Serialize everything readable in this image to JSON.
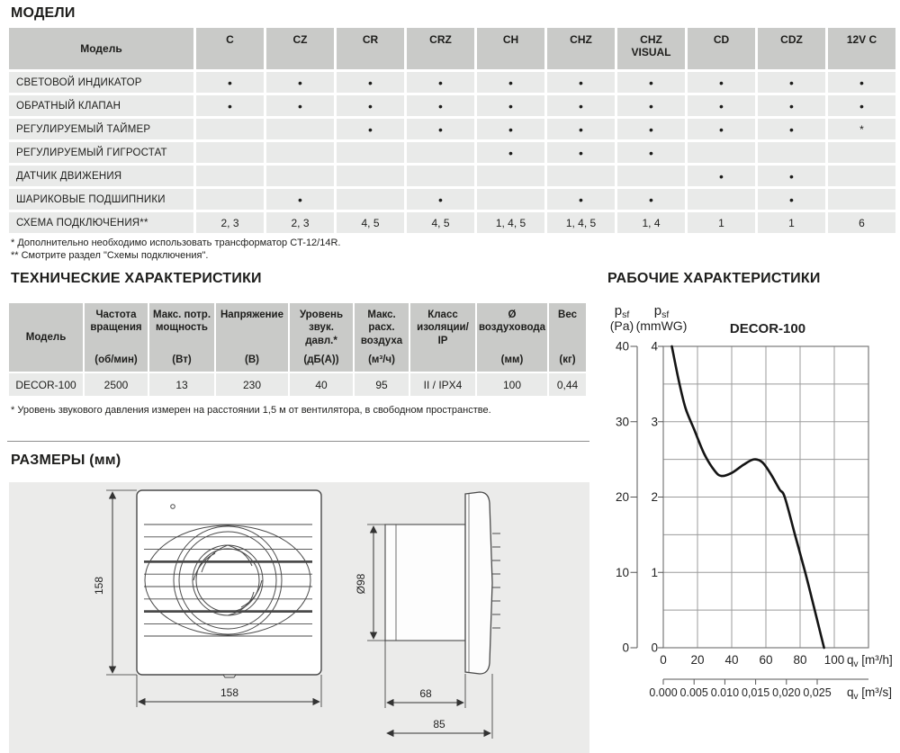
{
  "colors": {
    "header_gray": "#c9cac8",
    "cell_gray": "#e9eae9",
    "panel_gray": "#ebebea",
    "text": "#1d1d1b",
    "grid": "#9b9b9b",
    "curve": "#141414"
  },
  "models": {
    "title": "МОДЕЛИ",
    "corner": "Модель",
    "columns": [
      "C",
      "CZ",
      "CR",
      "CRZ",
      "CH",
      "CHZ",
      "CHZ VISUAL",
      "CD",
      "CDZ",
      "12V C"
    ],
    "rows": [
      {
        "label": "СВЕТОВОЙ ИНДИКАТОР",
        "cells": [
          "•",
          "•",
          "•",
          "•",
          "•",
          "•",
          "•",
          "•",
          "•",
          "•"
        ]
      },
      {
        "label": "ОБРАТНЫЙ КЛАПАН",
        "cells": [
          "•",
          "•",
          "•",
          "•",
          "•",
          "•",
          "•",
          "•",
          "•",
          "•"
        ]
      },
      {
        "label": "РЕГУЛИРУЕМЫЙ ТАЙМЕР",
        "cells": [
          "",
          "",
          "•",
          "•",
          "•",
          "•",
          "•",
          "•",
          "•",
          "*"
        ]
      },
      {
        "label": "РЕГУЛИРУЕМЫЙ ГИГРОСТАТ",
        "cells": [
          "",
          "",
          "",
          "",
          "•",
          "•",
          "•",
          "",
          "",
          ""
        ]
      },
      {
        "label": "ДАТЧИК ДВИЖЕНИЯ",
        "cells": [
          "",
          "",
          "",
          "",
          "",
          "",
          "",
          "•",
          "•",
          ""
        ]
      },
      {
        "label": "ШАРИКОВЫЕ ПОДШИПНИКИ",
        "cells": [
          "",
          "•",
          "",
          "•",
          "",
          "•",
          "•",
          "",
          "•",
          ""
        ]
      },
      {
        "label": "СХЕМА ПОДКЛЮЧЕНИЯ**",
        "cells": [
          "2, 3",
          "2, 3",
          "4, 5",
          "4, 5",
          "1, 4, 5",
          "1, 4, 5",
          "1, 4",
          "1",
          "1",
          "6"
        ]
      }
    ],
    "footnotes": [
      "* Дополнительно необходимо использовать трансформатор CT-12/14R.",
      "** Смотрите раздел \"Схемы подключения\"."
    ]
  },
  "tech": {
    "title": "ТЕХНИЧЕСКИЕ ХАРАКТЕРИСТИКИ",
    "headers": [
      {
        "name": "Модель",
        "unit": "",
        "center": true
      },
      {
        "name": "Частота вращения",
        "unit": "(об/мин)"
      },
      {
        "name": "Макс. потр. мощность",
        "unit": "(Вт)"
      },
      {
        "name": "Напряжение",
        "unit": "(В)"
      },
      {
        "name": "Уровень звук. давл.*",
        "unit": "(дБ(А))"
      },
      {
        "name": "Макс. расх. воздуха",
        "unit": "(м³/ч)"
      },
      {
        "name": "Класс изоляции/ IP",
        "unit": ""
      },
      {
        "name": "Ø воздуховода",
        "unit": "(мм)"
      },
      {
        "name": "Вес",
        "unit": "(кг)"
      }
    ],
    "row": [
      "DECOR-100",
      "2500",
      "13",
      "230",
      "40",
      "95",
      "II / IPX4",
      "100",
      "0,44"
    ],
    "footnote": "* Уровень звукового давления измерен на расстоянии 1,5 м от вентилятора, в свободном пространстве."
  },
  "dims": {
    "title": "РАЗМЕРЫ (мм)",
    "front_height": "158",
    "front_width": "158",
    "diameter": "Ø98",
    "duct_depth": "68",
    "total_depth": "85"
  },
  "perf": {
    "title": "РАБОЧИЕ ХАРАКТЕРИСТИКИ"
  },
  "chart_data": {
    "type": "line",
    "title": "DECOR-100",
    "y_axis_pa": {
      "sym": "p",
      "sub": "sf",
      "unit": "(Pa)",
      "ticks": [
        40,
        30,
        20,
        10,
        0
      ],
      "range": [
        0,
        40
      ]
    },
    "y_axis_mmwg": {
      "sym": "p",
      "sub": "sf",
      "unit": "(mmWG)",
      "ticks": [
        4,
        3,
        2,
        1,
        0
      ],
      "range": [
        0,
        4
      ]
    },
    "x_axis_m3h": {
      "sym": "q",
      "sub": "v",
      "unit": "[m³/h]",
      "ticks": [
        0,
        20,
        40,
        60,
        80,
        100
      ],
      "range": [
        0,
        120
      ],
      "grid_step": 20
    },
    "x_axis_m3s": {
      "sym": "q",
      "sub": "v",
      "unit": "[m³/s]",
      "tick_labels": [
        "0.000",
        "0.005",
        "0.010",
        "0,015",
        "0,020",
        "0,025"
      ],
      "tick_values_m3h": [
        0,
        18,
        36,
        54,
        72,
        90
      ]
    },
    "grid": {
      "y_step_mmwg": 0.5,
      "visible": true
    },
    "legend": "none",
    "series": [
      {
        "name": "DECOR-100",
        "x_unit": "m³/h",
        "y_unit": "mmWG",
        "points": [
          [
            5,
            4.0
          ],
          [
            9,
            3.55
          ],
          [
            13,
            3.18
          ],
          [
            18,
            2.9
          ],
          [
            24,
            2.57
          ],
          [
            30,
            2.35
          ],
          [
            34,
            2.28
          ],
          [
            40,
            2.32
          ],
          [
            47,
            2.43
          ],
          [
            53,
            2.5
          ],
          [
            58,
            2.46
          ],
          [
            63,
            2.3
          ],
          [
            68,
            2.1
          ],
          [
            71,
            2.0
          ],
          [
            77,
            1.5
          ],
          [
            83,
            1.0
          ],
          [
            88,
            0.55
          ],
          [
            94,
            0
          ]
        ]
      }
    ]
  }
}
